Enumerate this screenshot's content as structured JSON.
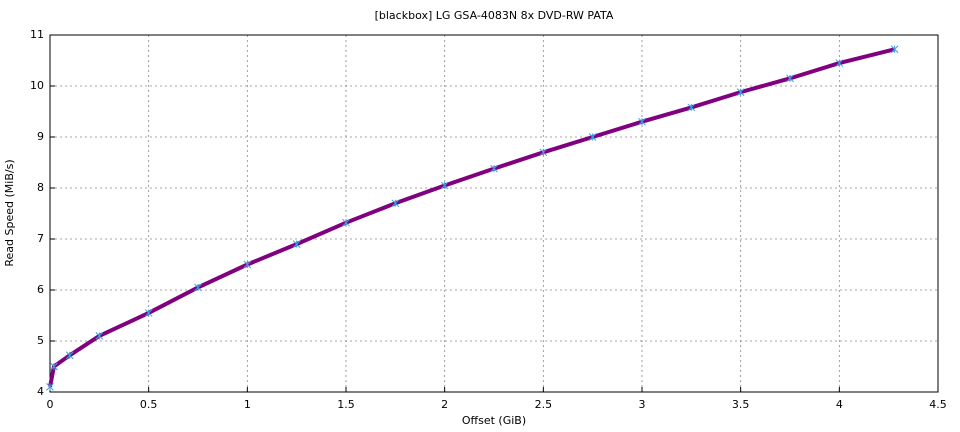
{
  "chart_data": {
    "type": "line",
    "title": "[blackbox] LG GSA-4083N 8x DVD-RW PATA",
    "x_label": "Offset (GiB)",
    "y_label": "Read Speed (MiB/s)",
    "x": [
      0,
      0.02,
      0.1,
      0.25,
      0.5,
      0.75,
      1,
      1.25,
      1.5,
      1.75,
      2,
      2.25,
      2.5,
      2.75,
      3,
      3.25,
      3.5,
      3.75,
      4,
      4.28
    ],
    "series": [
      {
        "color": "#800080",
        "marker_color": "#3aa0e0",
        "values": [
          4.1,
          4.5,
          4.72,
          5.1,
          5.55,
          6.05,
          6.5,
          6.9,
          7.32,
          7.7,
          8.05,
          8.38,
          8.7,
          9.0,
          9.3,
          9.58,
          9.88,
          10.15,
          10.45,
          10.72
        ]
      }
    ],
    "xlim": [
      0,
      4.5
    ],
    "ylim": [
      4,
      11
    ],
    "xticks": [
      0,
      0.5,
      1,
      1.5,
      2,
      2.5,
      3,
      3.5,
      4,
      4.5
    ],
    "yticks": [
      4,
      5,
      6,
      7,
      8,
      9,
      10,
      11
    ],
    "grid": true
  }
}
